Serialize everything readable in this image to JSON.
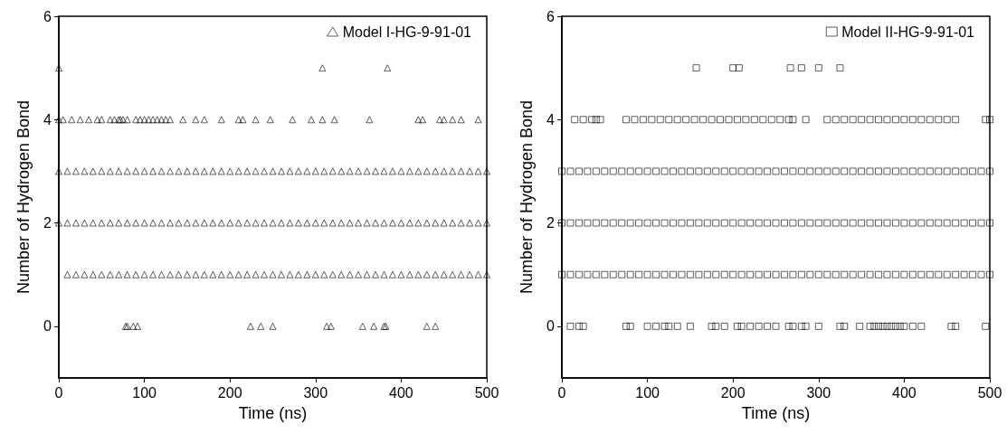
{
  "chart_data": [
    {
      "type": "scatter",
      "xlabel": "Time (ns)",
      "ylabel": "Number of Hydrogen Bond",
      "xlim": [
        0,
        500
      ],
      "xticks": [
        0,
        100,
        200,
        300,
        400,
        500
      ],
      "ylim": [
        -1,
        6
      ],
      "yticks": [
        0,
        2,
        4,
        6
      ],
      "grid": false,
      "legend": "top right",
      "marker": "triangle",
      "series": [
        {
          "name": "Model I-HG-9-91-01",
          "color": "#000000",
          "x": [
            78,
            80,
            87,
            92,
            224,
            236,
            250,
            313,
            318,
            355,
            368,
            380,
            382,
            430,
            440,
            10,
            20,
            30,
            40,
            50,
            60,
            70,
            80,
            90,
            100,
            110,
            120,
            130,
            140,
            150,
            160,
            170,
            180,
            190,
            200,
            210,
            220,
            230,
            240,
            250,
            260,
            270,
            280,
            290,
            300,
            310,
            320,
            330,
            340,
            350,
            360,
            370,
            380,
            390,
            400,
            410,
            420,
            430,
            440,
            450,
            460,
            470,
            480,
            490,
            500,
            0,
            10,
            20,
            30,
            40,
            50,
            60,
            70,
            80,
            90,
            100,
            110,
            120,
            130,
            140,
            150,
            160,
            170,
            180,
            190,
            200,
            210,
            220,
            230,
            240,
            250,
            260,
            270,
            280,
            290,
            300,
            310,
            320,
            330,
            340,
            350,
            360,
            370,
            380,
            390,
            400,
            410,
            420,
            430,
            440,
            450,
            460,
            470,
            480,
            490,
            500,
            0,
            10,
            20,
            30,
            40,
            50,
            60,
            70,
            80,
            90,
            100,
            110,
            120,
            130,
            140,
            150,
            160,
            170,
            180,
            190,
            200,
            210,
            220,
            230,
            240,
            250,
            260,
            270,
            280,
            290,
            300,
            310,
            320,
            330,
            340,
            350,
            360,
            370,
            380,
            390,
            400,
            410,
            420,
            430,
            440,
            450,
            460,
            470,
            480,
            490,
            500,
            0,
            5,
            15,
            25,
            35,
            45,
            50,
            60,
            65,
            70,
            72,
            75,
            80,
            90,
            95,
            100,
            105,
            110,
            115,
            120,
            125,
            130,
            145,
            160,
            170,
            190,
            210,
            215,
            230,
            247,
            273,
            295,
            308,
            322,
            363,
            420,
            425,
            445,
            450,
            460,
            470,
            490,
            0,
            308,
            384
          ],
          "values": [
            0,
            0,
            0,
            0,
            0,
            0,
            0,
            0,
            0,
            0,
            0,
            0,
            0,
            0,
            0,
            1,
            1,
            1,
            1,
            1,
            1,
            1,
            1,
            1,
            1,
            1,
            1,
            1,
            1,
            1,
            1,
            1,
            1,
            1,
            1,
            1,
            1,
            1,
            1,
            1,
            1,
            1,
            1,
            1,
            1,
            1,
            1,
            1,
            1,
            1,
            1,
            1,
            1,
            1,
            1,
            1,
            1,
            1,
            1,
            1,
            1,
            1,
            1,
            1,
            1,
            2,
            2,
            2,
            2,
            2,
            2,
            2,
            2,
            2,
            2,
            2,
            2,
            2,
            2,
            2,
            2,
            2,
            2,
            2,
            2,
            2,
            2,
            2,
            2,
            2,
            2,
            2,
            2,
            2,
            2,
            2,
            2,
            2,
            2,
            2,
            2,
            2,
            2,
            2,
            2,
            2,
            2,
            2,
            2,
            2,
            2,
            2,
            2,
            2,
            2,
            2,
            3,
            3,
            3,
            3,
            3,
            3,
            3,
            3,
            3,
            3,
            3,
            3,
            3,
            3,
            3,
            3,
            3,
            3,
            3,
            3,
            3,
            3,
            3,
            3,
            3,
            3,
            3,
            3,
            3,
            3,
            3,
            3,
            3,
            3,
            3,
            3,
            3,
            3,
            3,
            3,
            3,
            3,
            3,
            3,
            3,
            3,
            3,
            3,
            3,
            3,
            3,
            4,
            4,
            4,
            4,
            4,
            4,
            4,
            4,
            4,
            4,
            4,
            4,
            4,
            4,
            4,
            4,
            4,
            4,
            4,
            4,
            4,
            4,
            4,
            4,
            4,
            4,
            4,
            4,
            4,
            4,
            4,
            4,
            4,
            4,
            4,
            4,
            4,
            4,
            4,
            4,
            4,
            4,
            5,
            5,
            5
          ]
        }
      ]
    },
    {
      "type": "scatter",
      "xlabel": "Time (ns)",
      "ylabel": "Number of Hydrogen Bond",
      "xlim": [
        0,
        500
      ],
      "xticks": [
        0,
        100,
        200,
        300,
        400,
        500
      ],
      "ylim": [
        -1,
        6
      ],
      "yticks": [
        0,
        2,
        4,
        6
      ],
      "grid": false,
      "legend": "top right",
      "marker": "square",
      "series": [
        {
          "name": "Model II-HG-9-91-01",
          "color": "#000000",
          "x": [
            10,
            20,
            25,
            75,
            80,
            100,
            110,
            120,
            125,
            135,
            150,
            175,
            180,
            190,
            205,
            210,
            220,
            230,
            240,
            250,
            265,
            270,
            280,
            285,
            300,
            325,
            330,
            348,
            360,
            365,
            370,
            375,
            380,
            385,
            390,
            395,
            400,
            410,
            420,
            455,
            460,
            495,
            0,
            10,
            20,
            30,
            40,
            50,
            60,
            70,
            80,
            90,
            100,
            110,
            120,
            130,
            140,
            150,
            160,
            170,
            180,
            190,
            200,
            210,
            220,
            230,
            240,
            250,
            260,
            270,
            280,
            290,
            300,
            310,
            320,
            330,
            340,
            350,
            360,
            370,
            380,
            390,
            400,
            410,
            420,
            430,
            440,
            450,
            460,
            470,
            480,
            490,
            500,
            0,
            10,
            20,
            30,
            40,
            50,
            60,
            70,
            80,
            90,
            100,
            110,
            120,
            130,
            140,
            150,
            160,
            170,
            180,
            190,
            200,
            210,
            220,
            230,
            240,
            250,
            260,
            270,
            280,
            290,
            300,
            310,
            320,
            330,
            340,
            350,
            360,
            370,
            380,
            390,
            400,
            410,
            420,
            430,
            440,
            450,
            460,
            470,
            480,
            490,
            500,
            0,
            10,
            20,
            30,
            40,
            50,
            60,
            70,
            80,
            90,
            100,
            110,
            120,
            130,
            140,
            150,
            160,
            170,
            180,
            190,
            200,
            210,
            220,
            230,
            240,
            250,
            260,
            270,
            280,
            290,
            300,
            310,
            320,
            330,
            340,
            350,
            360,
            370,
            380,
            390,
            400,
            410,
            420,
            430,
            440,
            450,
            460,
            470,
            480,
            490,
            500,
            15,
            25,
            35,
            40,
            45,
            75,
            85,
            95,
            105,
            115,
            125,
            135,
            145,
            155,
            165,
            175,
            185,
            195,
            205,
            215,
            225,
            235,
            245,
            255,
            265,
            270,
            285,
            310,
            320,
            330,
            340,
            350,
            360,
            370,
            380,
            390,
            400,
            410,
            420,
            430,
            440,
            450,
            460,
            495,
            500,
            157,
            200,
            207,
            267,
            280,
            300,
            325
          ],
          "values": [
            0,
            0,
            0,
            0,
            0,
            0,
            0,
            0,
            0,
            0,
            0,
            0,
            0,
            0,
            0,
            0,
            0,
            0,
            0,
            0,
            0,
            0,
            0,
            0,
            0,
            0,
            0,
            0,
            0,
            0,
            0,
            0,
            0,
            0,
            0,
            0,
            0,
            0,
            0,
            0,
            0,
            0,
            1,
            1,
            1,
            1,
            1,
            1,
            1,
            1,
            1,
            1,
            1,
            1,
            1,
            1,
            1,
            1,
            1,
            1,
            1,
            1,
            1,
            1,
            1,
            1,
            1,
            1,
            1,
            1,
            1,
            1,
            1,
            1,
            1,
            1,
            1,
            1,
            1,
            1,
            1,
            1,
            1,
            1,
            1,
            1,
            1,
            1,
            1,
            1,
            1,
            1,
            1,
            2,
            2,
            2,
            2,
            2,
            2,
            2,
            2,
            2,
            2,
            2,
            2,
            2,
            2,
            2,
            2,
            2,
            2,
            2,
            2,
            2,
            2,
            2,
            2,
            2,
            2,
            2,
            2,
            2,
            2,
            2,
            2,
            2,
            2,
            2,
            2,
            2,
            2,
            2,
            2,
            2,
            2,
            2,
            2,
            2,
            2,
            2,
            2,
            2,
            2,
            2,
            3,
            3,
            3,
            3,
            3,
            3,
            3,
            3,
            3,
            3,
            3,
            3,
            3,
            3,
            3,
            3,
            3,
            3,
            3,
            3,
            3,
            3,
            3,
            3,
            3,
            3,
            3,
            3,
            3,
            3,
            3,
            3,
            3,
            3,
            3,
            3,
            3,
            3,
            3,
            3,
            3,
            3,
            3,
            3,
            3,
            3,
            3,
            3,
            3,
            3,
            3,
            4,
            4,
            4,
            4,
            4,
            4,
            4,
            4,
            4,
            4,
            4,
            4,
            4,
            4,
            4,
            4,
            4,
            4,
            4,
            4,
            4,
            4,
            4,
            4,
            4,
            4,
            4,
            4,
            4,
            4,
            4,
            4,
            4,
            4,
            4,
            4,
            4,
            4,
            4,
            4,
            4,
            4,
            4,
            4,
            4,
            5,
            5,
            5,
            5,
            5,
            5,
            5
          ]
        }
      ]
    }
  ]
}
